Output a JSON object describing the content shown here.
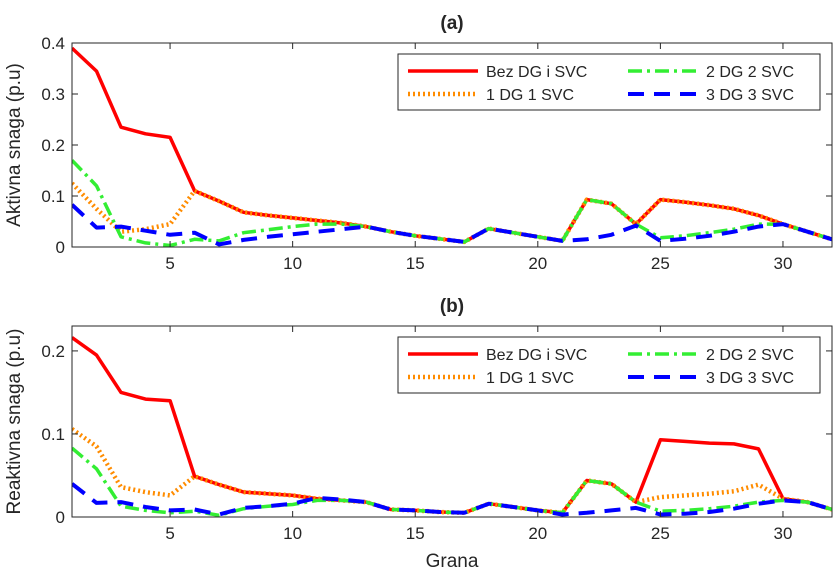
{
  "chart_data": [
    {
      "type": "line",
      "title": "(a)",
      "xlabel": "",
      "ylabel": "Aktivna snaga (p.u)",
      "xlim": [
        1,
        32
      ],
      "ylim": [
        0,
        0.4
      ],
      "xticks": [
        5,
        10,
        15,
        20,
        25,
        30
      ],
      "yticks": [
        0,
        0.1,
        0.2,
        0.3,
        0.4
      ],
      "xtick_labels": [
        "5",
        "10",
        "15",
        "20",
        "25",
        "30"
      ],
      "ytick_labels": [
        "0",
        "0.1",
        "0.2",
        "0.3",
        "0.4"
      ],
      "grid": false,
      "legend_position": "top-right",
      "x": [
        1,
        2,
        3,
        4,
        5,
        6,
        7,
        8,
        9,
        10,
        11,
        12,
        13,
        14,
        15,
        16,
        17,
        18,
        19,
        20,
        21,
        22,
        23,
        24,
        25,
        26,
        27,
        28,
        29,
        30,
        31,
        32
      ],
      "series": [
        {
          "name": "Bez DG i SVC",
          "color": "#ff0000",
          "style": "solid",
          "values": [
            0.39,
            0.345,
            0.235,
            0.222,
            0.215,
            0.11,
            0.09,
            0.068,
            0.062,
            0.057,
            0.052,
            0.047,
            0.04,
            0.03,
            0.022,
            0.016,
            0.01,
            0.036,
            0.028,
            0.02,
            0.012,
            0.093,
            0.085,
            0.045,
            0.093,
            0.088,
            0.082,
            0.075,
            0.062,
            0.045,
            0.03,
            0.015
          ]
        },
        {
          "name": "1 DG 1 SVC",
          "color": "#ff8c00",
          "style": "dotted",
          "values": [
            0.125,
            0.075,
            0.03,
            0.035,
            0.045,
            0.11,
            0.09,
            0.068,
            0.062,
            0.057,
            0.052,
            0.047,
            0.04,
            0.03,
            0.022,
            0.016,
            0.01,
            0.036,
            0.028,
            0.02,
            0.012,
            0.093,
            0.085,
            0.045,
            0.093,
            0.088,
            0.082,
            0.075,
            0.062,
            0.045,
            0.03,
            0.015
          ]
        },
        {
          "name": "2 DG 2 SVC",
          "color": "#33ee33",
          "style": "dashdot",
          "values": [
            0.17,
            0.12,
            0.02,
            0.008,
            0.003,
            0.015,
            0.012,
            0.028,
            0.034,
            0.04,
            0.045,
            0.045,
            0.04,
            0.03,
            0.022,
            0.016,
            0.01,
            0.036,
            0.028,
            0.02,
            0.012,
            0.093,
            0.085,
            0.045,
            0.018,
            0.022,
            0.028,
            0.035,
            0.045,
            0.045,
            0.03,
            0.015
          ]
        },
        {
          "name": "3 DG 3 SVC",
          "color": "#0000ff",
          "style": "dashed",
          "values": [
            0.083,
            0.038,
            0.04,
            0.032,
            0.024,
            0.028,
            0.005,
            0.014,
            0.02,
            0.025,
            0.03,
            0.035,
            0.04,
            0.03,
            0.022,
            0.016,
            0.01,
            0.036,
            0.028,
            0.02,
            0.012,
            0.015,
            0.024,
            0.042,
            0.012,
            0.016,
            0.022,
            0.03,
            0.04,
            0.045,
            0.03,
            0.015
          ]
        }
      ]
    },
    {
      "type": "line",
      "title": "(b)",
      "xlabel": "Grana",
      "ylabel": "Reaktivna snaga (p.u)",
      "xlim": [
        1,
        32
      ],
      "ylim": [
        0,
        0.23
      ],
      "xticks": [
        5,
        10,
        15,
        20,
        25,
        30
      ],
      "yticks": [
        0,
        0.1,
        0.2
      ],
      "xtick_labels": [
        "5",
        "10",
        "15",
        "20",
        "25",
        "30"
      ],
      "ytick_labels": [
        "0",
        "0.1",
        "0.2"
      ],
      "grid": false,
      "legend_position": "top-right",
      "x": [
        1,
        2,
        3,
        4,
        5,
        6,
        7,
        8,
        9,
        10,
        11,
        12,
        13,
        14,
        15,
        16,
        17,
        18,
        19,
        20,
        21,
        22,
        23,
        24,
        25,
        26,
        27,
        28,
        29,
        30,
        31,
        32
      ],
      "series": [
        {
          "name": "Bez DG i SVC",
          "color": "#ff0000",
          "style": "solid",
          "values": [
            0.216,
            0.195,
            0.15,
            0.142,
            0.14,
            0.049,
            0.039,
            0.03,
            0.028,
            0.026,
            0.022,
            0.02,
            0.018,
            0.009,
            0.008,
            0.006,
            0.005,
            0.016,
            0.012,
            0.008,
            0.005,
            0.044,
            0.04,
            0.018,
            0.093,
            0.091,
            0.089,
            0.088,
            0.082,
            0.022,
            0.018,
            0.009
          ]
        },
        {
          "name": "1 DG 1 SVC",
          "color": "#ff8c00",
          "style": "dotted",
          "values": [
            0.106,
            0.085,
            0.036,
            0.03,
            0.026,
            0.049,
            0.039,
            0.03,
            0.028,
            0.026,
            0.022,
            0.02,
            0.018,
            0.009,
            0.008,
            0.006,
            0.005,
            0.016,
            0.012,
            0.008,
            0.005,
            0.044,
            0.04,
            0.018,
            0.024,
            0.026,
            0.028,
            0.031,
            0.039,
            0.022,
            0.018,
            0.009
          ]
        },
        {
          "name": "2 DG 2 SVC",
          "color": "#33ee33",
          "style": "dashdot",
          "values": [
            0.083,
            0.058,
            0.013,
            0.008,
            0.005,
            0.007,
            0.002,
            0.01,
            0.013,
            0.015,
            0.02,
            0.02,
            0.018,
            0.009,
            0.008,
            0.006,
            0.005,
            0.016,
            0.012,
            0.008,
            0.005,
            0.044,
            0.04,
            0.018,
            0.007,
            0.008,
            0.01,
            0.013,
            0.018,
            0.02,
            0.018,
            0.009
          ]
        },
        {
          "name": "3 DG 3 SVC",
          "color": "#0000ff",
          "style": "dashed",
          "values": [
            0.04,
            0.017,
            0.018,
            0.012,
            0.008,
            0.009,
            0.003,
            0.011,
            0.013,
            0.016,
            0.023,
            0.021,
            0.018,
            0.009,
            0.008,
            0.006,
            0.005,
            0.016,
            0.012,
            0.008,
            0.003,
            0.005,
            0.008,
            0.011,
            0.003,
            0.004,
            0.006,
            0.01,
            0.016,
            0.02,
            0.018,
            0.009
          ]
        }
      ]
    }
  ]
}
